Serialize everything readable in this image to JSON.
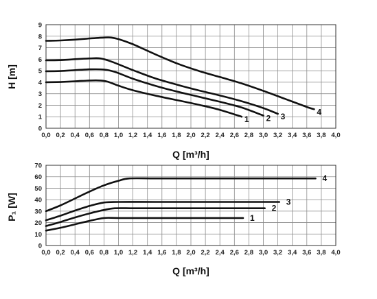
{
  "chart_data": [
    {
      "type": "line",
      "title": "",
      "xlabel": "Q [m³/h]",
      "ylabel": "H [m]",
      "xlim": [
        0,
        4.0
      ],
      "ylim": [
        0,
        9
      ],
      "x_ticks": [
        "0,0",
        "0,2",
        "0,4",
        "0,6",
        "0,8",
        "1,0",
        "1,2",
        "1,4",
        "1,6",
        "1,8",
        "2,0",
        "2,2",
        "2,4",
        "2,6",
        "2,8",
        "3,0",
        "3,2",
        "3,4",
        "3,6",
        "3,8",
        "4,0"
      ],
      "y_ticks": [
        "0",
        "1",
        "2",
        "3",
        "4",
        "5",
        "6",
        "7",
        "8",
        "9"
      ],
      "grid": true,
      "series": [
        {
          "name": "1",
          "x": [
            0,
            0.2,
            0.4,
            0.6,
            0.75,
            0.85,
            1.0,
            1.2,
            1.5,
            1.8,
            2.1,
            2.4,
            2.7
          ],
          "y": [
            4.0,
            4.02,
            4.08,
            4.15,
            4.15,
            4.05,
            3.7,
            3.3,
            2.85,
            2.45,
            2.05,
            1.6,
            1.0
          ]
        },
        {
          "name": "2",
          "x": [
            0,
            0.2,
            0.4,
            0.6,
            0.8,
            0.95,
            1.2,
            1.5,
            1.8,
            2.1,
            2.4,
            2.7,
            3.0
          ],
          "y": [
            4.95,
            4.97,
            5.05,
            5.12,
            5.1,
            4.9,
            4.3,
            3.7,
            3.2,
            2.75,
            2.3,
            1.8,
            1.1
          ]
        },
        {
          "name": "3",
          "x": [
            0,
            0.2,
            0.4,
            0.6,
            0.75,
            0.9,
            1.2,
            1.5,
            1.8,
            2.1,
            2.4,
            2.7,
            3.0,
            3.2
          ],
          "y": [
            5.9,
            5.92,
            6.0,
            6.07,
            6.07,
            5.8,
            5.05,
            4.35,
            3.8,
            3.3,
            2.85,
            2.35,
            1.75,
            1.25
          ]
        },
        {
          "name": "4",
          "x": [
            0,
            0.2,
            0.4,
            0.6,
            0.8,
            0.9,
            1.0,
            1.2,
            1.5,
            1.8,
            2.1,
            2.4,
            2.7,
            3.0,
            3.3,
            3.6,
            3.7
          ],
          "y": [
            7.6,
            7.63,
            7.7,
            7.8,
            7.88,
            7.88,
            7.75,
            7.3,
            6.45,
            5.65,
            5.0,
            4.45,
            3.9,
            3.25,
            2.55,
            1.85,
            1.65
          ]
        }
      ]
    },
    {
      "type": "line",
      "title": "",
      "xlabel": "Q [m³/h]",
      "ylabel": "P₁ [W]",
      "xlim": [
        0,
        4.0
      ],
      "ylim": [
        0,
        70
      ],
      "x_ticks": [
        "0,0",
        "0,2",
        "0,4",
        "0,6",
        "0,8",
        "1,0",
        "1,2",
        "1,4",
        "1,6",
        "1,8",
        "2,0",
        "2,2",
        "2,4",
        "2,6",
        "2,8",
        "3,0",
        "3,2",
        "3,4",
        "3,6",
        "3,8",
        "4,0"
      ],
      "y_ticks": [
        "0",
        "10",
        "20",
        "30",
        "40",
        "50",
        "60",
        "70"
      ],
      "grid": true,
      "series": [
        {
          "name": "1",
          "x": [
            0,
            0.2,
            0.4,
            0.6,
            0.8,
            1.0,
            1.5,
            2.0,
            2.5,
            2.72
          ],
          "y": [
            13,
            15.5,
            18.5,
            21.5,
            24,
            24,
            24,
            24,
            24,
            24
          ]
        },
        {
          "name": "2",
          "x": [
            0,
            0.2,
            0.4,
            0.6,
            0.8,
            0.95,
            1.2,
            1.5,
            2.0,
            2.5,
            3.02
          ],
          "y": [
            17,
            20.5,
            24.5,
            28,
            31,
            32.5,
            32.5,
            32.5,
            32.5,
            32.5,
            32.5
          ]
        },
        {
          "name": "3",
          "x": [
            0,
            0.2,
            0.4,
            0.6,
            0.8,
            1.0,
            1.5,
            2.0,
            2.5,
            3.0,
            3.22
          ],
          "y": [
            22,
            26,
            30.5,
            34.5,
            37.5,
            38,
            38,
            38,
            38,
            38,
            38
          ]
        },
        {
          "name": "4",
          "x": [
            0,
            0.2,
            0.4,
            0.6,
            0.8,
            1.0,
            1.15,
            1.5,
            2.0,
            2.5,
            3.0,
            3.5,
            3.72
          ],
          "y": [
            30,
            35,
            41,
            47,
            52.5,
            56.5,
            58.5,
            58.5,
            58.5,
            58.5,
            58.5,
            58.5,
            58.5
          ]
        }
      ]
    }
  ]
}
